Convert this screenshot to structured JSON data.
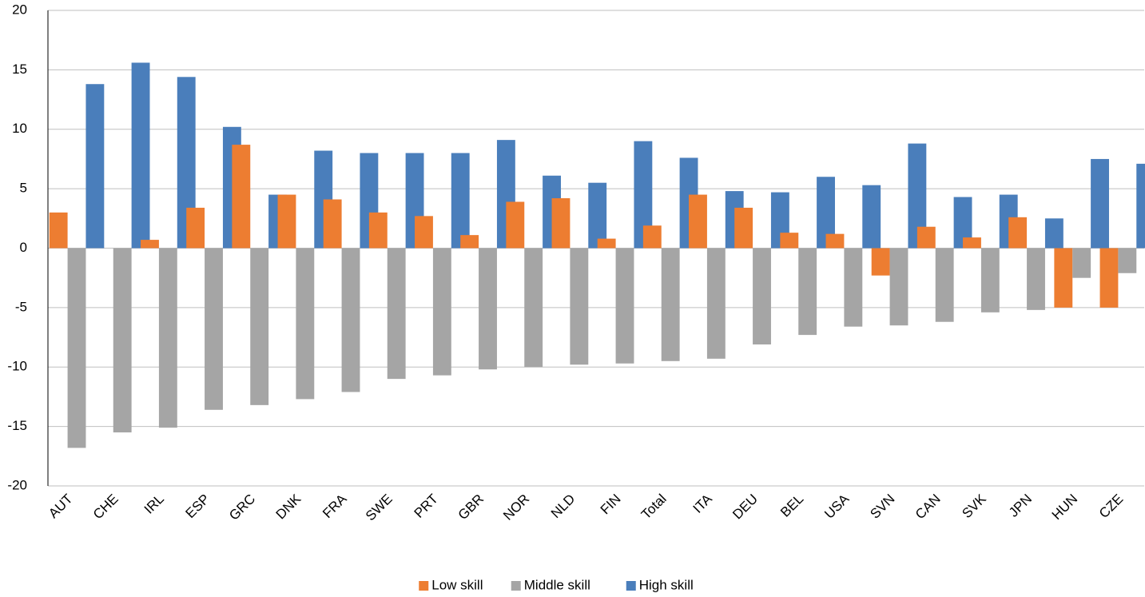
{
  "chart_data": {
    "type": "bar",
    "categories": [
      "AUT",
      "CHE",
      "IRL",
      "ESP",
      "GRC",
      "DNK",
      "FRA",
      "SWE",
      "PRT",
      "GBR",
      "NOR",
      "NLD",
      "FIN",
      "Total",
      "ITA",
      "DEU",
      "BEL",
      "USA",
      "SVN",
      "CAN",
      "SVK",
      "JPN",
      "HUN",
      "CZE"
    ],
    "series": [
      {
        "name": "Low skill",
        "color": "#ed7d31",
        "values": [
          3.0,
          0,
          0.7,
          3.4,
          8.7,
          4.5,
          4.1,
          3.0,
          2.7,
          1.1,
          3.9,
          4.2,
          0.8,
          1.9,
          4.5,
          3.4,
          1.3,
          1.2,
          -2.3,
          1.8,
          0.9,
          2.6,
          -5.0,
          -5.0
        ]
      },
      {
        "name": "Middle skill",
        "color": "#a5a5a5",
        "values": [
          -16.8,
          -15.5,
          -15.1,
          -13.6,
          -13.2,
          -12.7,
          -12.1,
          -11.0,
          -10.7,
          -10.2,
          -10.0,
          -9.8,
          -9.7,
          -9.5,
          -9.3,
          -8.1,
          -7.3,
          -6.6,
          -6.5,
          -6.2,
          -5.4,
          -5.2,
          -2.5,
          -2.1
        ]
      },
      {
        "name": "High skill",
        "color": "#4a7ebb",
        "values": [
          13.8,
          15.6,
          14.4,
          10.2,
          4.5,
          8.2,
          8.0,
          8.0,
          8.0,
          9.1,
          6.1,
          5.5,
          9.0,
          7.6,
          4.8,
          4.7,
          6.0,
          5.3,
          8.8,
          4.3,
          4.5,
          2.5,
          7.5,
          7.1
        ]
      }
    ],
    "ylim": [
      -20,
      20
    ],
    "yticks": [
      -20,
      -15,
      -10,
      -5,
      0,
      5,
      10,
      15,
      20
    ],
    "grid": true,
    "legend": "bottom"
  }
}
